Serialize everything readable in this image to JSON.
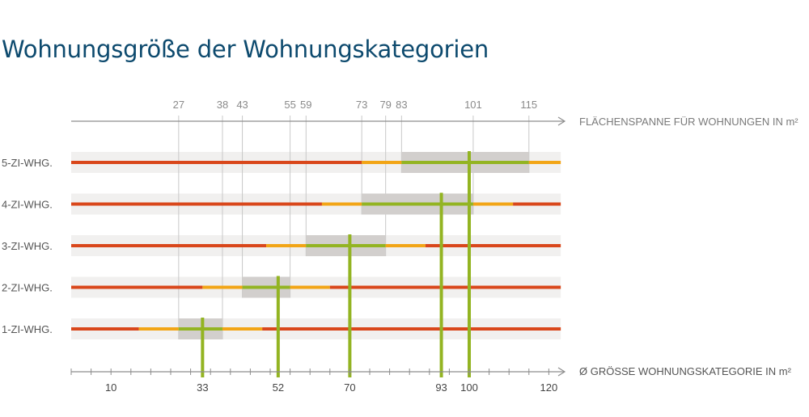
{
  "title": "Wohnungsgröße der Wohnungskategorien",
  "chart_data": {
    "type": "range",
    "top_axis": {
      "label": "FLÄCHENSPANNE FÜR WOHNUNGEN IN m²",
      "ticks": [
        27,
        38,
        43,
        55,
        59,
        73,
        79,
        83,
        101,
        115
      ]
    },
    "bottom_axis": {
      "label": "Ø GRÖSSE WOHNUNGSKATEGORIE IN m²",
      "ticks": [
        10,
        33,
        52,
        70,
        93,
        100,
        120
      ],
      "range": [
        0,
        123
      ]
    },
    "categories": [
      {
        "name": "5-ZI-WHG.",
        "range": [
          83,
          115
        ],
        "average": 100,
        "green": [
          83,
          115
        ],
        "orange": [
          73,
          123
        ]
      },
      {
        "name": "4-ZI-WHG.",
        "range": [
          73,
          101
        ],
        "average": 93,
        "green": [
          73,
          101
        ],
        "orange": [
          63,
          111
        ]
      },
      {
        "name": "3-ZI-WHG.",
        "range": [
          59,
          79
        ],
        "average": 70,
        "green": [
          59,
          79
        ],
        "orange": [
          49,
          89
        ]
      },
      {
        "name": "2-ZI-WHG.",
        "range": [
          43,
          55
        ],
        "average": 52,
        "green": [
          43,
          55
        ],
        "orange": [
          33,
          65
        ]
      },
      {
        "name": "1-ZI-WHG.",
        "range": [
          27,
          38
        ],
        "average": 33,
        "green": [
          27,
          38
        ],
        "orange": [
          17,
          48
        ]
      }
    ],
    "colors": {
      "red": "#d9471b",
      "orange": "#f2a516",
      "green": "#93b422",
      "range_box": "#d2cfcd",
      "row_band": "#f1f0ef",
      "axis": "#8d8d8d",
      "guide": "#c8c8c8"
    }
  }
}
